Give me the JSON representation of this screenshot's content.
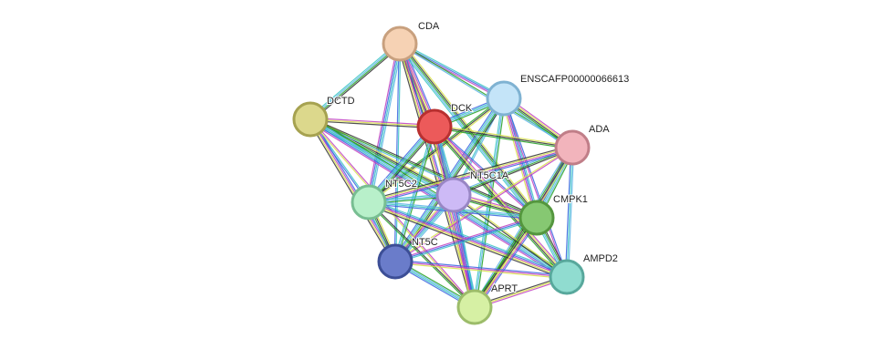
{
  "nodes": [
    {
      "label": "CDA"
    },
    {
      "label": "ENSCAFP00000066613"
    },
    {
      "label": "DCTD"
    },
    {
      "label": "DCK"
    },
    {
      "label": "ADA"
    },
    {
      "label": "NT5C1A"
    },
    {
      "label": "NT5C2"
    },
    {
      "label": "CMPK1"
    },
    {
      "label": "NT5C"
    },
    {
      "label": "AMPD2"
    },
    {
      "label": "APRT"
    }
  ]
}
